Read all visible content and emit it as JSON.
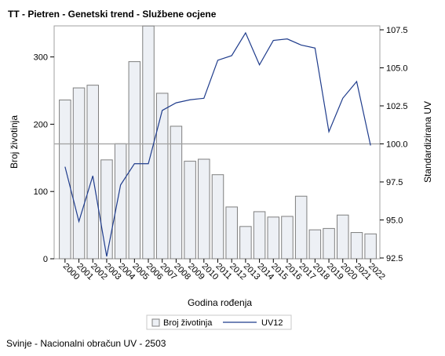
{
  "chart_data": {
    "type": "bar",
    "title": "TT - Pietren - Genetski trend - Službene ocjene",
    "xlabel": "Godina rođenja",
    "ylabel": "Broj životinja",
    "y2label": "Standardizirana UV",
    "categories": [
      "2000",
      "2001",
      "2002",
      "2003",
      "2004",
      "2005",
      "2006",
      "2007",
      "2008",
      "2009",
      "2010",
      "2011",
      "2012",
      "2013",
      "2014",
      "2015",
      "2016",
      "2017",
      "2018",
      "2019",
      "2020",
      "2021",
      "2022"
    ],
    "series": [
      {
        "name": "Broj životinja",
        "type": "bar",
        "axis": "left",
        "values": [
          236,
          254,
          258,
          147,
          171,
          293,
          346,
          246,
          197,
          145,
          148,
          125,
          77,
          48,
          70,
          62,
          63,
          93,
          43,
          45,
          65,
          39,
          37
        ]
      },
      {
        "name": "UV12",
        "type": "line",
        "axis": "right",
        "values": [
          98.5,
          94.9,
          97.9,
          92.6,
          97.3,
          98.7,
          98.7,
          102.2,
          102.7,
          102.9,
          103.0,
          105.5,
          105.8,
          107.3,
          105.2,
          106.8,
          106.9,
          106.5,
          106.3,
          100.8,
          103.0,
          104.1,
          99.9
        ]
      }
    ],
    "ylim": [
      0,
      345
    ],
    "y_ticks": [
      0,
      100,
      200,
      300
    ],
    "y2lim": [
      92.5,
      107.5
    ],
    "y2_ticks": [
      "92.5",
      "95.0",
      "97.5",
      "100.0",
      "102.5",
      "105.0",
      "107.5"
    ],
    "reference_line_y2": 100.0,
    "legend_position": "bottom",
    "grid": false,
    "colors": {
      "bar_fill": "#edf0f5",
      "bar_stroke": "#7f7f7f",
      "line": "#1f3c8c",
      "reference": "#a0a0a0"
    }
  },
  "footnote": "Svinje - Nacionalni obračun UV - 2503"
}
